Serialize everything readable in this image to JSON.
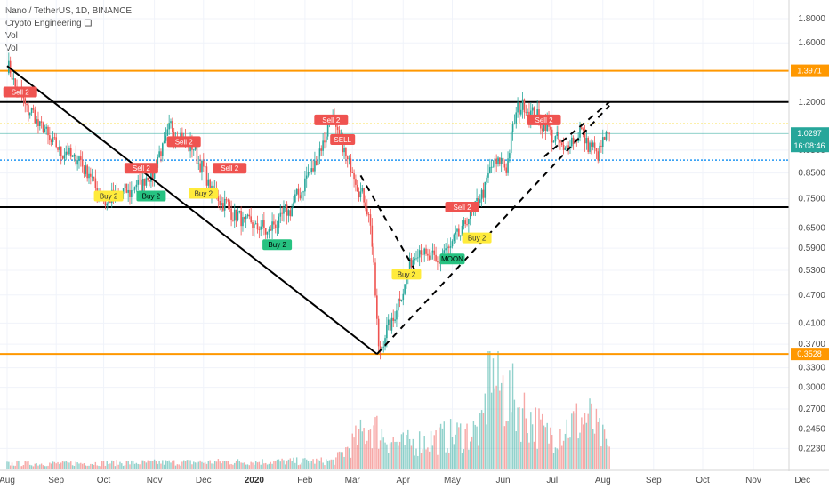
{
  "header": {
    "symbol_line": "Nano / TetherUS, 1D, BINANCE",
    "indicator": "Crypto Engineering ❑",
    "vol1": "Vol",
    "vol2": "Vol"
  },
  "colors": {
    "up": "#26a69a",
    "down": "#ef5350",
    "orange_line": "#ff9800",
    "black_line": "#000000",
    "yellow_dotted": "#f9d71c",
    "blue_dotted": "#2196f3",
    "buy_badge": "#ffeb3b",
    "buy_strong_badge": "#26c281",
    "sell_badge": "#ef5350",
    "price_label": "#26a69a",
    "level_label": "#ff9800"
  },
  "chart_data": {
    "type": "candlestick",
    "scale": "log",
    "y_range": [
      0.2075,
      1.92
    ],
    "y_ticks": [
      "1.8000",
      "1.6000",
      "1.2000",
      "0.9500",
      "0.8500",
      "0.7500",
      "0.6500",
      "0.5900",
      "0.5300",
      "0.4700",
      "0.4100",
      "0.3700",
      "0.3300",
      "0.3000",
      "0.2700",
      "0.2450",
      "0.2230"
    ],
    "y_tick_values": [
      1.8,
      1.6,
      1.2,
      0.95,
      0.85,
      0.75,
      0.65,
      0.59,
      0.53,
      0.47,
      0.41,
      0.37,
      0.33,
      0.3,
      0.27,
      0.245,
      0.223
    ],
    "x_tick_labels": [
      "Aug",
      "Sep",
      "Oct",
      "Nov",
      "Dec",
      "2020",
      "Feb",
      "Mar",
      "Apr",
      "May",
      "Jun",
      "Jul",
      "Aug",
      "Sep",
      "Oct",
      "Nov",
      "Dec"
    ],
    "x_tick_day_index": [
      0,
      30,
      59,
      90,
      120,
      151,
      182,
      211,
      242,
      272,
      303,
      333,
      364,
      395,
      425,
      456,
      486
    ],
    "last_day_index": 368,
    "horizontal_levels": [
      {
        "price": 1.3971,
        "label": "1.3971",
        "color": "orange",
        "style": "solid"
      },
      {
        "price": 1.2,
        "label": "",
        "color": "black",
        "style": "solid"
      },
      {
        "price": 1.08,
        "label": "",
        "color": "yellow",
        "style": "dotted"
      },
      {
        "price": 1.0297,
        "label": "",
        "color": "teal",
        "style": "thin"
      },
      {
        "price": 0.905,
        "label": "",
        "color": "blue",
        "style": "dotted"
      },
      {
        "price": 0.72,
        "label": "",
        "color": "black",
        "style": "solid"
      },
      {
        "price": 0.3528,
        "label": "0.3528",
        "color": "orange",
        "style": "solid"
      }
    ],
    "trend_lines": [
      {
        "from": [
          0,
          1.43
        ],
        "to": [
          226,
          0.3528
        ],
        "style": "solid"
      },
      {
        "from": [
          226,
          0.3528
        ],
        "to": [
          368,
          1.18
        ],
        "style": "dashed"
      },
      {
        "from": [
          328,
          0.92
        ],
        "to": [
          368,
          1.2
        ],
        "style": "dashed"
      },
      {
        "from": [
          216,
          0.84
        ],
        "to": [
          252,
          0.51
        ],
        "style": "dashed"
      }
    ],
    "key_prices": [
      {
        "day": 0,
        "price": 1.43
      },
      {
        "day": 10,
        "price": 1.2
      },
      {
        "day": 30,
        "price": 0.96
      },
      {
        "day": 45,
        "price": 0.9
      },
      {
        "day": 60,
        "price": 0.74
      },
      {
        "day": 75,
        "price": 0.78
      },
      {
        "day": 88,
        "price": 0.84
      },
      {
        "day": 100,
        "price": 1.06
      },
      {
        "day": 115,
        "price": 0.94
      },
      {
        "day": 125,
        "price": 0.78
      },
      {
        "day": 142,
        "price": 0.68
      },
      {
        "day": 160,
        "price": 0.64
      },
      {
        "day": 175,
        "price": 0.73
      },
      {
        "day": 190,
        "price": 0.92
      },
      {
        "day": 198,
        "price": 1.12
      },
      {
        "day": 204,
        "price": 0.98
      },
      {
        "day": 214,
        "price": 0.81
      },
      {
        "day": 222,
        "price": 0.68
      },
      {
        "day": 227,
        "price": 0.36
      },
      {
        "day": 236,
        "price": 0.42
      },
      {
        "day": 250,
        "price": 0.59
      },
      {
        "day": 262,
        "price": 0.55
      },
      {
        "day": 275,
        "price": 0.62
      },
      {
        "day": 288,
        "price": 0.74
      },
      {
        "day": 298,
        "price": 0.9
      },
      {
        "day": 305,
        "price": 0.88
      },
      {
        "day": 312,
        "price": 1.18
      },
      {
        "day": 320,
        "price": 1.15
      },
      {
        "day": 330,
        "price": 1.06
      },
      {
        "day": 340,
        "price": 0.95
      },
      {
        "day": 350,
        "price": 1.04
      },
      {
        "day": 360,
        "price": 0.93
      },
      {
        "day": 368,
        "price": 1.0297
      }
    ],
    "volume_profile": [
      {
        "day": 0,
        "v": 0.05
      },
      {
        "day": 200,
        "v": 0.08
      },
      {
        "day": 222,
        "v": 0.45
      },
      {
        "day": 240,
        "v": 0.25
      },
      {
        "day": 290,
        "v": 0.4
      },
      {
        "day": 295,
        "v": 1.0
      },
      {
        "day": 310,
        "v": 0.7
      },
      {
        "day": 330,
        "v": 0.35
      },
      {
        "day": 355,
        "v": 0.55
      },
      {
        "day": 368,
        "v": 0.2
      }
    ],
    "signals": [
      {
        "label": "Sell 2",
        "type": "sell",
        "day": 8,
        "price": 1.26
      },
      {
        "label": "Buy 2",
        "type": "buy",
        "day": 62,
        "price": 0.76
      },
      {
        "label": "Sell 2",
        "type": "sell",
        "day": 82,
        "price": 0.87
      },
      {
        "label": "Buy 2",
        "type": "buy_strong",
        "day": 88,
        "price": 0.76
      },
      {
        "label": "Sell 2",
        "type": "sell",
        "day": 108,
        "price": 0.99
      },
      {
        "label": "Buy 2",
        "type": "buy",
        "day": 120,
        "price": 0.77
      },
      {
        "label": "Sell 2",
        "type": "sell",
        "day": 136,
        "price": 0.87
      },
      {
        "label": "Buy 2",
        "type": "buy_strong",
        "day": 165,
        "price": 0.6
      },
      {
        "label": "Sell 2",
        "type": "sell",
        "day": 198,
        "price": 1.1
      },
      {
        "label": "SELL",
        "type": "sell",
        "day": 205,
        "price": 1.0
      },
      {
        "label": "Buy 2",
        "type": "buy",
        "day": 244,
        "price": 0.52
      },
      {
        "label": "MOON",
        "type": "buy_strong",
        "day": 272,
        "price": 0.56
      },
      {
        "label": "Sell 2",
        "type": "sell",
        "day": 278,
        "price": 0.72
      },
      {
        "label": "Buy 2",
        "type": "buy",
        "day": 287,
        "price": 0.62
      },
      {
        "label": "Sell 2",
        "type": "sell",
        "day": 328,
        "price": 1.1
      }
    ],
    "price_labels": {
      "level_top": "1.3971",
      "current": "1.0297",
      "countdown": "16:08:46",
      "level_bottom": "0.3528"
    }
  }
}
